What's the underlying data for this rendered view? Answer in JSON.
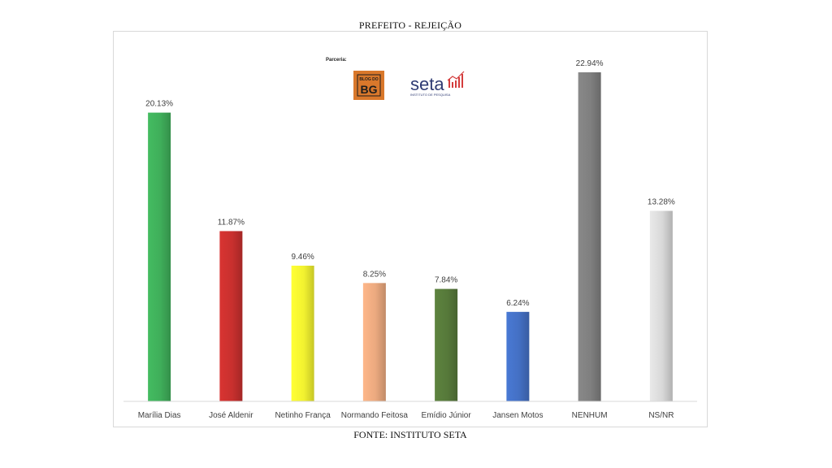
{
  "page": {
    "title": "PREFEITO - REJEIÇÃO",
    "source": "FONTE: INSTITUTO SETA"
  },
  "partners": {
    "label": "Parceria:",
    "logo_blog": {
      "text_top": "BLOG DO",
      "text_main": "BG",
      "color": "#d9782b"
    },
    "logo_seta": {
      "text_main": "seta",
      "text_sub": "INSTITUTO DE PESQUISA",
      "color": "#2f3b73",
      "accent": "#d43d3d"
    }
  },
  "chart_data": {
    "type": "bar",
    "title": "",
    "xlabel": "",
    "ylabel": "",
    "ylim": [
      0,
      25
    ],
    "grid": false,
    "categories": [
      "Marília Dias",
      "José Aldenir",
      "Netinho França",
      "Normando Feitosa",
      "Emídio Júnior",
      "Jansen Motos",
      "NENHUM",
      "NS/NR"
    ],
    "values": [
      20.13,
      11.87,
      9.46,
      8.25,
      7.84,
      6.24,
      22.94,
      13.28
    ],
    "value_labels": [
      "20.13%",
      "11.87%",
      "9.46%",
      "8.25%",
      "7.84%",
      "6.24%",
      "22.94%",
      "13.28%"
    ],
    "colors": [
      "#3fae5a",
      "#c8302e",
      "#f2f230",
      "#eba97f",
      "#56793a",
      "#4470c4",
      "#7f7f7f",
      "#d8d8d8"
    ],
    "axis_color": "#d9d9d9"
  }
}
